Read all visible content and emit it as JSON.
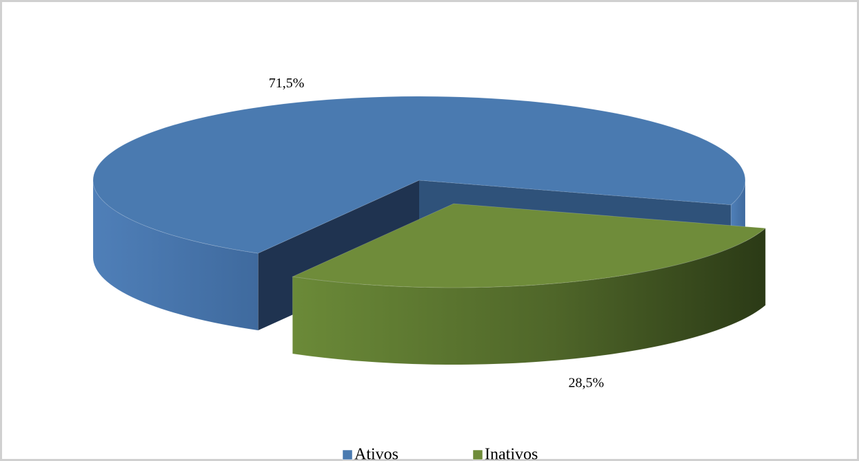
{
  "chart_data": {
    "type": "pie3d",
    "categories": [
      "Ativos",
      "Inativos"
    ],
    "values": [
      71.5,
      28.5
    ],
    "value_labels": [
      "71,5%",
      "28,5%"
    ],
    "colors": [
      "#4a7ab0",
      "#6f8c3a"
    ],
    "legend": "bottom"
  }
}
